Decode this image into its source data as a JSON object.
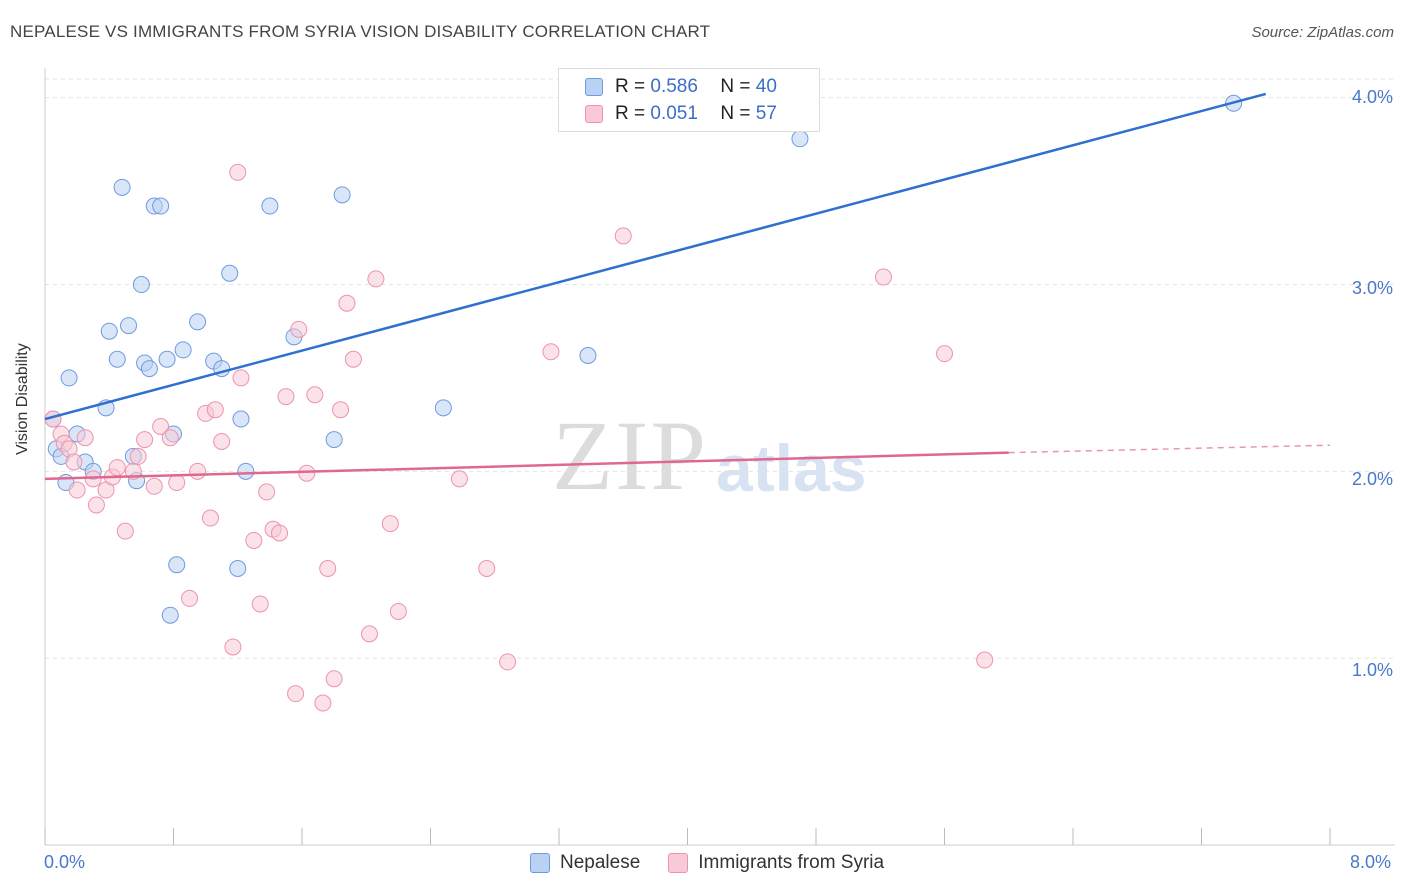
{
  "title": "NEPALESE VS IMMIGRANTS FROM SYRIA VISION DISABILITY CORRELATION CHART",
  "source": "Source: ZipAtlas.com",
  "watermark": {
    "zip": "ZIP",
    "atlas": "atlas"
  },
  "legend": {
    "r_label": "R =",
    "n_label": "N =",
    "rows": [
      {
        "name": "Nepalese",
        "r": "0.586",
        "n": "40"
      },
      {
        "name": "Immigrants from Syria",
        "r": "0.051",
        "n": "57"
      }
    ]
  },
  "colors": {
    "blue_fill": "#b9d1f3",
    "blue_stroke": "#6f9ae0",
    "blue_line": "#2f6fcf",
    "pink_fill": "#f8c9d6",
    "pink_stroke": "#ec94ad",
    "pink_line": "#e06890"
  },
  "chart_data": {
    "type": "scatter",
    "title": "NEPALESE VS IMMIGRANTS FROM SYRIA VISION DISABILITY CORRELATION CHART",
    "xlabel": "",
    "ylabel": "Vision Disability",
    "xlim": [
      0,
      8
    ],
    "ylim": [
      0,
      4.1
    ],
    "x_tick_labels": [
      "0.0%",
      "8.0%"
    ],
    "y_tick_labels": [
      "1.0%",
      "2.0%",
      "3.0%",
      "4.0%"
    ],
    "y_ticks": [
      1,
      2,
      3,
      4
    ],
    "grid": true,
    "legend_position": "top-center",
    "series": [
      {
        "name": "Nepalese",
        "r": 0.586,
        "n": 40,
        "trend": {
          "x": [
            0,
            7.6
          ],
          "y": [
            2.28,
            4.02
          ],
          "dashed_to": null
        },
        "points": [
          [
            0.05,
            2.28
          ],
          [
            0.07,
            2.12
          ],
          [
            0.1,
            2.08
          ],
          [
            0.13,
            1.94
          ],
          [
            0.15,
            2.5
          ],
          [
            0.2,
            2.2
          ],
          [
            0.25,
            2.05
          ],
          [
            0.3,
            2.0
          ],
          [
            0.38,
            2.34
          ],
          [
            0.4,
            2.75
          ],
          [
            0.45,
            2.6
          ],
          [
            0.48,
            3.52
          ],
          [
            0.52,
            2.78
          ],
          [
            0.55,
            2.08
          ],
          [
            0.57,
            1.95
          ],
          [
            0.6,
            3.0
          ],
          [
            0.62,
            2.58
          ],
          [
            0.65,
            2.55
          ],
          [
            0.68,
            3.42
          ],
          [
            0.72,
            3.42
          ],
          [
            0.76,
            2.6
          ],
          [
            0.8,
            2.2
          ],
          [
            0.82,
            1.5
          ],
          [
            0.86,
            2.65
          ],
          [
            0.95,
            2.8
          ],
          [
            1.05,
            2.59
          ],
          [
            1.1,
            2.55
          ],
          [
            1.15,
            3.06
          ],
          [
            1.2,
            1.48
          ],
          [
            1.22,
            2.28
          ],
          [
            1.25,
            2.0
          ],
          [
            1.4,
            3.42
          ],
          [
            1.55,
            2.72
          ],
          [
            1.8,
            2.17
          ],
          [
            1.85,
            3.48
          ],
          [
            2.48,
            2.34
          ],
          [
            3.38,
            2.62
          ],
          [
            4.7,
            3.78
          ],
          [
            7.4,
            3.97
          ],
          [
            0.78,
            1.23
          ]
        ]
      },
      {
        "name": "Immigrants from Syria",
        "r": 0.051,
        "n": 57,
        "trend": {
          "x": [
            0,
            6.0
          ],
          "y": [
            1.96,
            2.1
          ],
          "dashed_to": [
            8.0,
            2.14
          ]
        },
        "points": [
          [
            0.05,
            2.28
          ],
          [
            0.1,
            2.2
          ],
          [
            0.12,
            2.15
          ],
          [
            0.15,
            2.12
          ],
          [
            0.18,
            2.05
          ],
          [
            0.2,
            1.9
          ],
          [
            0.25,
            2.18
          ],
          [
            0.3,
            1.96
          ],
          [
            0.32,
            1.82
          ],
          [
            0.38,
            1.9
          ],
          [
            0.42,
            1.97
          ],
          [
            0.45,
            2.02
          ],
          [
            0.5,
            1.68
          ],
          [
            0.55,
            2.0
          ],
          [
            0.58,
            2.08
          ],
          [
            0.62,
            2.17
          ],
          [
            0.68,
            1.92
          ],
          [
            0.72,
            2.24
          ],
          [
            0.78,
            2.18
          ],
          [
            0.82,
            1.94
          ],
          [
            0.9,
            1.32
          ],
          [
            0.95,
            2.0
          ],
          [
            1.0,
            2.31
          ],
          [
            1.03,
            1.75
          ],
          [
            1.06,
            2.33
          ],
          [
            1.1,
            2.16
          ],
          [
            1.17,
            1.06
          ],
          [
            1.2,
            3.6
          ],
          [
            1.22,
            2.5
          ],
          [
            1.3,
            1.63
          ],
          [
            1.34,
            1.29
          ],
          [
            1.38,
            1.89
          ],
          [
            1.42,
            1.69
          ],
          [
            1.46,
            1.67
          ],
          [
            1.5,
            2.4
          ],
          [
            1.56,
            0.81
          ],
          [
            1.58,
            2.76
          ],
          [
            1.63,
            1.99
          ],
          [
            1.68,
            2.41
          ],
          [
            1.73,
            0.76
          ],
          [
            1.76,
            1.48
          ],
          [
            1.8,
            0.89
          ],
          [
            1.84,
            2.33
          ],
          [
            1.88,
            2.9
          ],
          [
            1.92,
            2.6
          ],
          [
            2.02,
            1.13
          ],
          [
            2.06,
            3.03
          ],
          [
            2.15,
            1.72
          ],
          [
            2.2,
            1.25
          ],
          [
            2.58,
            1.96
          ],
          [
            2.75,
            1.48
          ],
          [
            2.88,
            0.98
          ],
          [
            3.15,
            2.64
          ],
          [
            3.6,
            3.26
          ],
          [
            5.22,
            3.04
          ],
          [
            5.6,
            2.63
          ],
          [
            5.85,
            0.99
          ]
        ]
      }
    ]
  },
  "legend_series": [
    {
      "label": "Nepalese"
    },
    {
      "label": "Immigrants from Syria"
    }
  ]
}
